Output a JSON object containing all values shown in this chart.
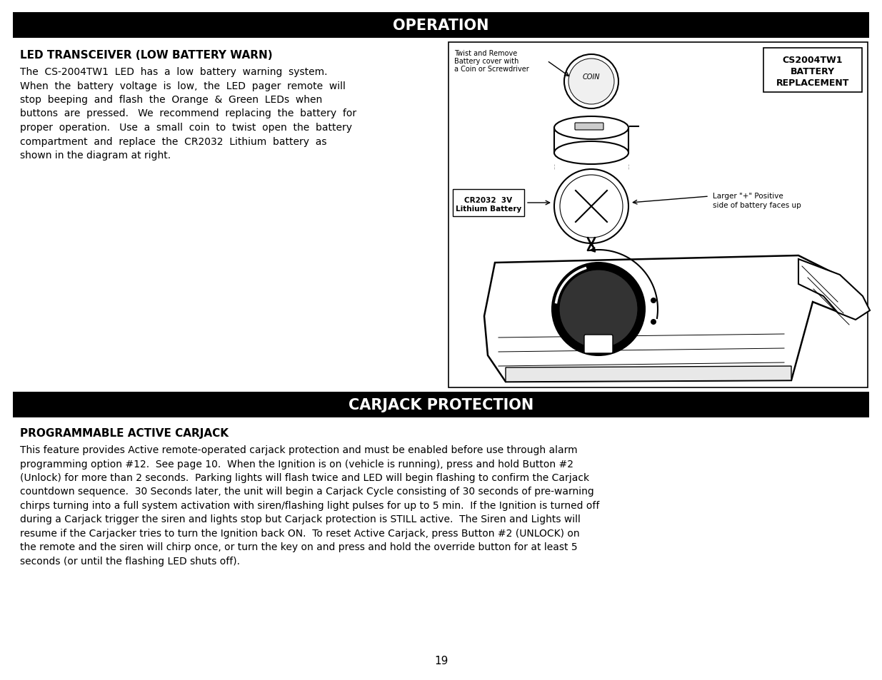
{
  "page_bg": "#ffffff",
  "header_bg": "#000000",
  "header_text_color": "#ffffff",
  "body_text_color": "#000000",
  "operation_title": "OPERATION",
  "carjack_title": "CARJACK PROTECTION",
  "led_section_title": "LED TRANSCEIVER (LOW BATTERY WARN)",
  "carjack_section_title": "PROGRAMMABLE ACTIVE CARJACK",
  "page_number": "19",
  "led_body_lines": [
    "The  CS-2004TW1  LED  has  a  low  battery  warning  system.",
    "When  the  battery  voltage  is  low,  the  LED  pager  remote  will",
    "stop  beeping  and  flash  the  Orange  &  Green  LEDs  when",
    "buttons  are  pressed.   We  recommend  replacing  the  battery  for",
    "proper  operation.   Use  a  small  coin  to  twist  open  the  battery",
    "compartment  and  replace  the  CR2032  Lithium  battery  as",
    "shown in the diagram at right."
  ],
  "carjack_body_lines": [
    "This feature provides Active remote-operated carjack protection and must be enabled before use through alarm",
    "programming option #12.  See page 10.  When the Ignition is on (vehicle is running), press and hold Button #2",
    "(Unlock) for more than 2 seconds.  Parking lights will flash twice and LED will begin flashing to confirm the Carjack",
    "countdown sequence.  30 Seconds later, the unit will begin a Carjack Cycle consisting of 30 seconds of pre-warning",
    "chirps turning into a full system activation with siren/flashing light pulses for up to 5 min.  If the Ignition is turned off",
    "during a Carjack trigger the siren and lights stop but Carjack protection is STILL active.  The Siren and Lights will",
    "resume if the Carjacker tries to turn the Ignition back ON.  To reset Active Carjack, press Button #2 (UNLOCK) on",
    "the remote and the siren will chirp once, or turn the key on and press and hold the override button for at least 5",
    "seconds (or until the flashing LED shuts off)."
  ]
}
